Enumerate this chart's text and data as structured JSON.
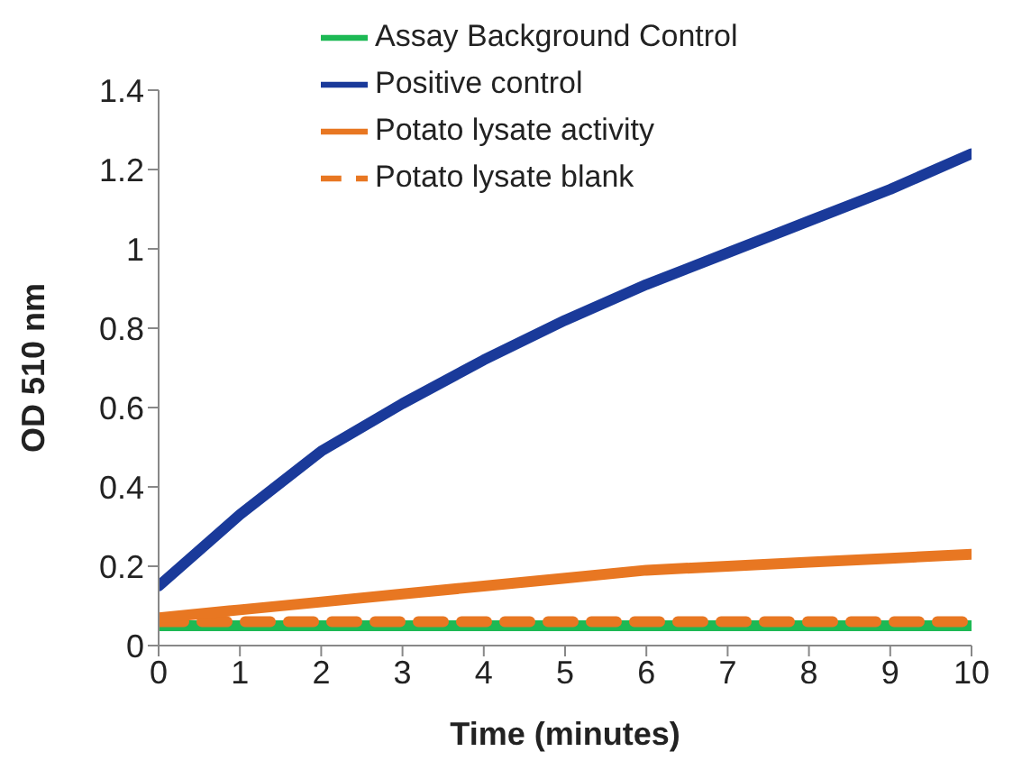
{
  "chart_data": {
    "type": "line",
    "xlabel": "Time (minutes)",
    "ylabel": "OD 510 nm",
    "x": [
      0,
      1,
      2,
      3,
      4,
      5,
      6,
      7,
      8,
      9,
      10
    ],
    "series": [
      {
        "name": "Assay Background Control",
        "color": "#1db954",
        "values": [
          0.05,
          0.05,
          0.05,
          0.05,
          0.05,
          0.05,
          0.05,
          0.05,
          0.05,
          0.05,
          0.05
        ]
      },
      {
        "name": "Positive control",
        "color": "#1a3a9a",
        "values": [
          0.15,
          0.33,
          0.49,
          0.61,
          0.72,
          0.82,
          0.91,
          0.99,
          1.07,
          1.15,
          1.24
        ]
      },
      {
        "name": "Potato lysate blank",
        "color": "#e87722",
        "line_style": "dashed",
        "values": [
          0.06,
          0.06,
          0.06,
          0.06,
          0.06,
          0.06,
          0.06,
          0.06,
          0.06,
          0.06,
          0.06
        ]
      },
      {
        "name": "Potato lysate activity",
        "color": "#e87722",
        "values": [
          0.07,
          0.09,
          0.11,
          0.13,
          0.15,
          0.17,
          0.19,
          0.2,
          0.21,
          0.22,
          0.23
        ]
      }
    ],
    "xlim": [
      0,
      10
    ],
    "xticks": [
      0,
      1,
      2,
      3,
      4,
      5,
      6,
      7,
      8,
      9,
      10
    ],
    "ylim": [
      0,
      1.4
    ],
    "yticks": [
      0,
      0.2,
      0.4,
      0.6,
      0.8,
      1,
      1.2,
      1.4
    ],
    "grid": false,
    "legend": "top right",
    "marker": "none",
    "line_style": "solid"
  }
}
